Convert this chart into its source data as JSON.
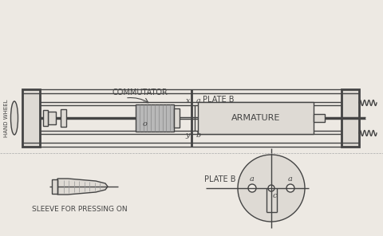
{
  "bg_color": "#ede9e3",
  "line_color": "#444444",
  "label_commutator": "COMMUTATOR",
  "label_o": "o",
  "label_armature": "ARMATURE",
  "label_plate_b_top": "PLATE B",
  "label_plate_b_bot": "PLATE B",
  "label_x": "x",
  "label_y": "y",
  "label_a_top": "a",
  "label_b_bot": "b",
  "label_a_left": "a",
  "label_a_right": "a",
  "label_c": "c",
  "label_hand_wheel": "HAND WHEEL",
  "label_sleeve": "SLEEVE FOR PRESSING ON",
  "lw": 1.0,
  "lw_thick": 2.0,
  "fill_light": "#dedad4",
  "fill_comm": "#b8b8b8",
  "fill_bg": "#ede9e3"
}
